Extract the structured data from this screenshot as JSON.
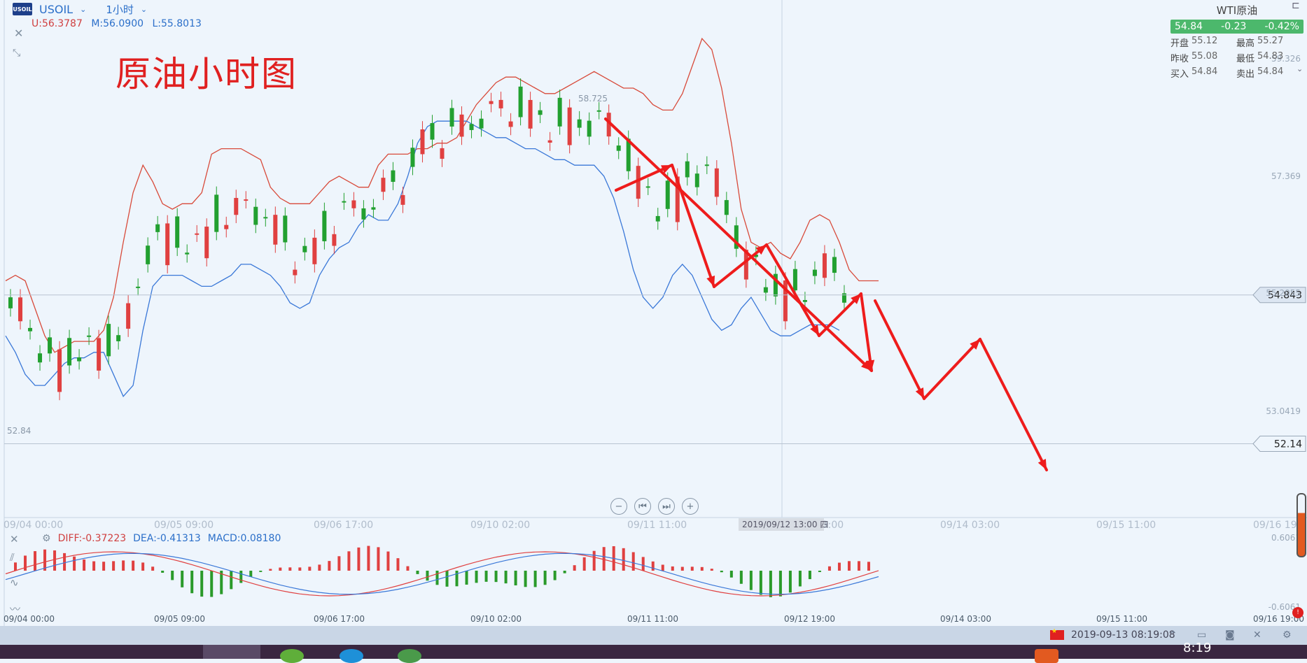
{
  "header": {
    "logo_text": "USOIL",
    "symbol": "USOIL",
    "timeframe": "1小时",
    "upper_label": "U:56.3787",
    "mid_label": "M:56.0900",
    "lower_label": "L:55.8013"
  },
  "chart_title": "原油小时图",
  "quote_panel": {
    "name": "WTI原油",
    "last": "54.84",
    "change": "-0.23",
    "change_pct": "-0.42%",
    "rows": [
      {
        "k1": "开盘",
        "v1": "55.12",
        "k2": "最高",
        "v2": "55.27"
      },
      {
        "k1": "昨收",
        "v1": "55.08",
        "k2": "最低",
        "v2": "54.83"
      },
      {
        "k1": "买入",
        "v1": "54.84",
        "k2": "卖出",
        "v2": "54.84"
      }
    ]
  },
  "price_tags": {
    "current": "54.843",
    "line": "52.14"
  },
  "annotations": {
    "high_label": "58.725",
    "low_label": "52.84",
    "crosshair_time": "2019/09/12 13:00 四"
  },
  "macd_legend": {
    "diff": "DIFF:-0.37223",
    "dea": "DEA:-0.41313",
    "macd": "MACD:0.08180"
  },
  "status_bar": {
    "datetime": "2019-09-13 08:19:08",
    "clock": "8:19"
  },
  "colors": {
    "up": "#e04040",
    "down": "#22a030",
    "band_upper": "#d84a3a",
    "band_lower": "#3a78d8",
    "arrow": "#ee1c1c",
    "macd_up": "#e04040",
    "macd_down": "#2a9a2a",
    "background": "#eef5fc",
    "quote_bar": "#4cb86c"
  },
  "chart_data": {
    "type": "line",
    "instrument": "USOIL",
    "timeframe": "1小时",
    "y_axis_ticks": [
      "59.326",
      "57.369",
      "55.2055",
      "53.0419"
    ],
    "y_axis_range": [
      50.8,
      60.2
    ],
    "x_axis_ticks": [
      "09/04 00:00",
      "09/05 09:00",
      "09/06 17:00",
      "09/10 02:00",
      "09/11 11:00",
      "09/12 19:00",
      "09/14 03:00",
      "09/15 11:00",
      "09/16 19:00"
    ],
    "macd_axis_ticks": [
      "0.6061",
      "-0.6061"
    ],
    "macd_range": [
      -0.6061,
      0.6061
    ],
    "horizontal_lines": [
      54.843,
      52.14
    ],
    "series": [
      {
        "name": "U",
        "x": [
          0,
          2,
          4,
          6,
          8,
          10,
          12,
          14,
          16,
          18,
          20,
          22,
          24,
          26,
          28,
          30,
          32,
          34,
          36,
          38,
          40,
          42,
          44,
          46,
          48,
          50,
          52,
          54,
          56,
          58,
          60,
          62,
          64,
          66,
          68,
          70,
          72,
          74,
          76,
          78,
          80,
          82,
          84,
          86,
          88,
          90,
          92,
          94,
          96,
          98,
          100,
          102,
          104,
          106,
          108,
          110,
          112,
          114,
          116,
          118,
          120,
          122,
          124,
          126,
          128,
          130,
          132,
          134,
          136,
          138,
          140,
          142,
          144,
          146,
          148,
          150,
          152,
          154,
          156,
          158,
          160,
          162,
          164,
          166,
          168,
          170,
          172,
          174,
          176,
          178,
          180,
          182,
          184,
          186,
          188,
          190,
          192,
          194,
          196,
          198,
          200,
          202,
          204,
          206,
          208,
          210,
          212,
          214,
          216,
          218,
          220,
          222,
          224,
          226,
          228,
          230,
          232,
          234,
          236,
          238,
          240,
          242,
          244,
          246
        ],
        "values": [
          55.1,
          55.2,
          55.1,
          54.6,
          54.1,
          53.8,
          53.9,
          54.0,
          54.0,
          54.0,
          54.2,
          54.8,
          55.8,
          56.7,
          57.2,
          56.9,
          56.5,
          56.4,
          56.5,
          56.5,
          56.7,
          57.4,
          57.5,
          57.5,
          57.5,
          57.4,
          57.3,
          56.8,
          56.6,
          56.5,
          56.5,
          56.5,
          56.7,
          56.9,
          57.0,
          56.9,
          56.8,
          56.8,
          57.2,
          57.4,
          57.4,
          57.4,
          57.5,
          57.5,
          57.6,
          57.6,
          57.7,
          58.0,
          58.3,
          58.5,
          58.7,
          58.8,
          58.8,
          58.7,
          58.6,
          58.5,
          58.5,
          58.6,
          58.7,
          58.8,
          58.9,
          58.8,
          58.7,
          58.6,
          58.6,
          58.5,
          58.3,
          58.2,
          58.2,
          58.5,
          59.0,
          59.5,
          59.3,
          58.6,
          57.6,
          56.4,
          55.8,
          55.7,
          55.8,
          55.6,
          55.5,
          55.8,
          56.2,
          56.3,
          56.2,
          55.8,
          55.3,
          55.1,
          55.1,
          55.1,
          null,
          null,
          null,
          null,
          null,
          null,
          null,
          null,
          null,
          null,
          null,
          null,
          null,
          null,
          null,
          null,
          null,
          null,
          null,
          null,
          null,
          null,
          null,
          null,
          null,
          null,
          null,
          null,
          null,
          null,
          null,
          null,
          null,
          null
        ]
      },
      {
        "name": "L",
        "x": [
          0,
          2,
          4,
          6,
          8,
          10,
          12,
          14,
          16,
          18,
          20,
          22,
          24,
          26,
          28,
          30,
          32,
          34,
          36,
          38,
          40,
          42,
          44,
          46,
          48,
          50,
          52,
          54,
          56,
          58,
          60,
          62,
          64,
          66,
          68,
          70,
          72,
          74,
          76,
          78,
          80,
          82,
          84,
          86,
          88,
          90,
          92,
          94,
          96,
          98,
          100,
          102,
          104,
          106,
          108,
          110,
          112,
          114,
          116,
          118,
          120,
          122,
          124,
          126,
          128,
          130,
          132,
          134,
          136,
          138,
          140,
          142,
          144,
          146,
          148,
          150,
          152,
          154,
          156,
          158,
          160,
          162,
          164,
          166,
          168,
          170,
          172,
          174,
          176,
          178
        ],
        "values": [
          54.1,
          53.8,
          53.4,
          53.2,
          53.2,
          53.4,
          53.6,
          53.7,
          53.7,
          53.8,
          53.8,
          53.4,
          53.0,
          53.2,
          54.2,
          55.0,
          55.2,
          55.2,
          55.2,
          55.1,
          55.0,
          55.0,
          55.1,
          55.2,
          55.4,
          55.4,
          55.3,
          55.2,
          55.0,
          54.7,
          54.6,
          54.7,
          55.2,
          55.5,
          55.7,
          55.8,
          56.1,
          56.3,
          56.2,
          56.2,
          56.5,
          57.0,
          57.6,
          57.9,
          58.0,
          58.0,
          58.0,
          58.0,
          57.9,
          57.8,
          57.7,
          57.7,
          57.6,
          57.5,
          57.5,
          57.4,
          57.3,
          57.3,
          57.2,
          57.2,
          57.2,
          57.0,
          56.6,
          56.0,
          55.3,
          54.8,
          54.6,
          54.8,
          55.2,
          55.4,
          55.2,
          54.8,
          54.4,
          54.2,
          54.3,
          54.6,
          54.8,
          54.5,
          54.2,
          54.1,
          54.1,
          54.2,
          54.3,
          54.3,
          54.3,
          54.2,
          null,
          null,
          null,
          null
        ]
      }
    ]
  }
}
